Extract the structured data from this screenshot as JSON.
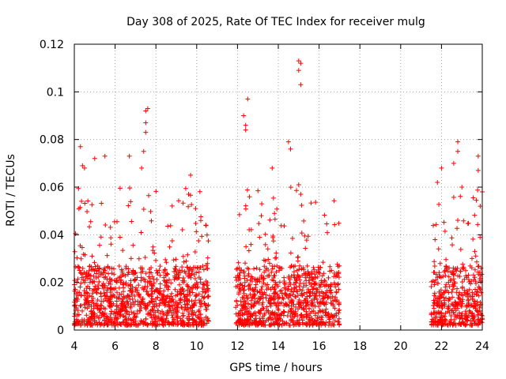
{
  "chart_data": {
    "type": "scatter",
    "title": "Day 308 of 2025, Rate Of TEC Index for receiver mulg",
    "xlabel": "GPS time / hours",
    "ylabel": "ROTI / TECUs",
    "xlim": [
      4,
      24
    ],
    "ylim": [
      0,
      0.12
    ],
    "x_ticks": [
      "4",
      "6",
      "8",
      "10",
      "12",
      "14",
      "16",
      "18",
      "20",
      "22",
      "24"
    ],
    "y_ticks": [
      "0",
      "0.02",
      "0.04",
      "0.06",
      "0.08",
      "0.1",
      "0.12"
    ],
    "grid": true,
    "marker": "+",
    "color": "#ff0000",
    "clusters": [
      {
        "x_range": [
          4.0,
          10.6
        ],
        "dense_max": 0.025,
        "sparse_max": 0.06
      },
      {
        "x_range": [
          11.9,
          17.0
        ],
        "dense_max": 0.025,
        "sparse_max": 0.06
      },
      {
        "x_range": [
          21.5,
          24.0
        ],
        "dense_max": 0.025,
        "sparse_max": 0.06
      }
    ],
    "outliers": [
      {
        "x": 4.3,
        "y": 0.077
      },
      {
        "x": 4.4,
        "y": 0.069
      },
      {
        "x": 4.5,
        "y": 0.068
      },
      {
        "x": 5.0,
        "y": 0.072
      },
      {
        "x": 5.5,
        "y": 0.073
      },
      {
        "x": 6.7,
        "y": 0.073
      },
      {
        "x": 7.3,
        "y": 0.068
      },
      {
        "x": 7.4,
        "y": 0.075
      },
      {
        "x": 7.5,
        "y": 0.083
      },
      {
        "x": 7.5,
        "y": 0.087
      },
      {
        "x": 7.5,
        "y": 0.092
      },
      {
        "x": 7.6,
        "y": 0.093
      },
      {
        "x": 9.7,
        "y": 0.065
      },
      {
        "x": 9.6,
        "y": 0.057
      },
      {
        "x": 10.2,
        "y": 0.046
      },
      {
        "x": 12.3,
        "y": 0.09
      },
      {
        "x": 12.4,
        "y": 0.086
      },
      {
        "x": 12.4,
        "y": 0.084
      },
      {
        "x": 12.5,
        "y": 0.097
      },
      {
        "x": 13.7,
        "y": 0.068
      },
      {
        "x": 14.5,
        "y": 0.079
      },
      {
        "x": 14.6,
        "y": 0.076
      },
      {
        "x": 15.0,
        "y": 0.113
      },
      {
        "x": 15.0,
        "y": 0.109
      },
      {
        "x": 15.1,
        "y": 0.112
      },
      {
        "x": 15.1,
        "y": 0.103
      },
      {
        "x": 15.0,
        "y": 0.061
      },
      {
        "x": 15.1,
        "y": 0.057
      },
      {
        "x": 22.0,
        "y": 0.068
      },
      {
        "x": 21.8,
        "y": 0.062
      },
      {
        "x": 22.6,
        "y": 0.07
      },
      {
        "x": 22.8,
        "y": 0.079
      },
      {
        "x": 22.8,
        "y": 0.075
      },
      {
        "x": 23.0,
        "y": 0.06
      },
      {
        "x": 23.8,
        "y": 0.073
      },
      {
        "x": 23.8,
        "y": 0.067
      },
      {
        "x": 24.0,
        "y": 0.058
      },
      {
        "x": 23.9,
        "y": 0.052
      }
    ]
  }
}
